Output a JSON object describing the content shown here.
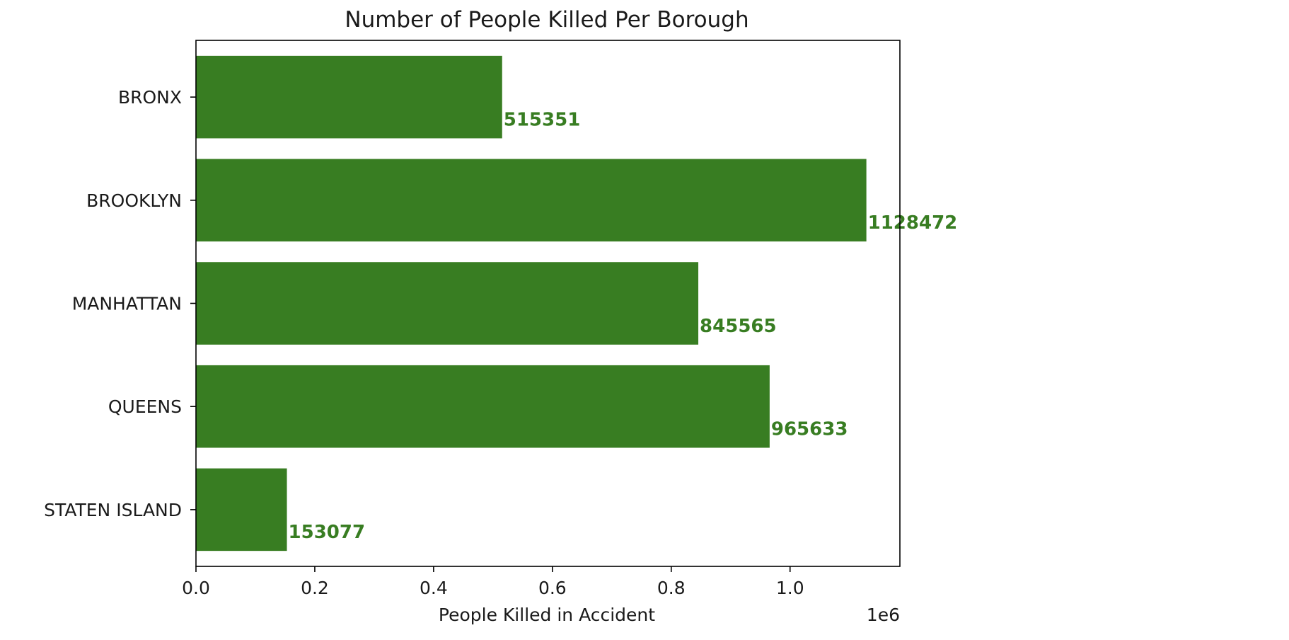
{
  "chart_data": {
    "type": "bar",
    "orientation": "horizontal",
    "title": "Number of People Killed Per Borough",
    "xlabel": "People Killed in Accident",
    "ylabel": "",
    "x_offset_text": "1e6",
    "x_scale_factor": 1000000,
    "xlim": [
      0,
      1184896
    ],
    "x_ticks": [
      0,
      200000,
      400000,
      600000,
      800000,
      1000000
    ],
    "x_tick_labels": [
      "0.0",
      "0.2",
      "0.4",
      "0.6",
      "0.8",
      "1.0"
    ],
    "categories": [
      "BRONX",
      "BROOKLYN",
      "MANHATTAN",
      "QUEENS",
      "STATEN ISLAND"
    ],
    "values": [
      515351,
      1128472,
      845565,
      965633,
      153077
    ],
    "data_labels": [
      "515351",
      "1128472",
      "845565",
      "965633",
      "153077"
    ],
    "bar_color": "#387d22",
    "label_color": "#387d22",
    "grid": false,
    "legend": "none"
  }
}
